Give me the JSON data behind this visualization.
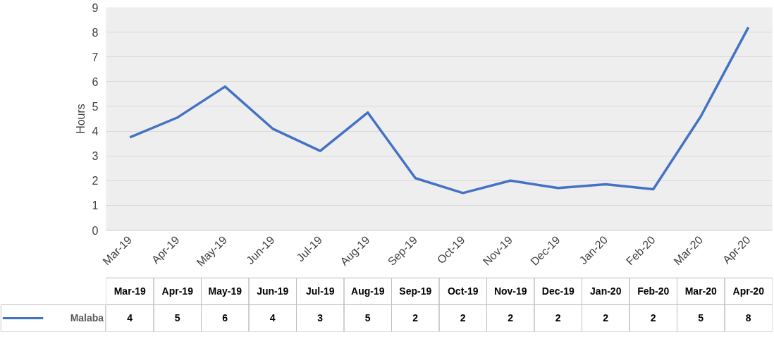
{
  "chart_data": {
    "type": "line",
    "ylabel": "Hours",
    "categories": [
      "Mar-19",
      "Apr-19",
      "May-19",
      "Jun-19",
      "Jul-19",
      "Aug-19",
      "Sep-19",
      "Oct-19",
      "Nov-19",
      "Dec-19",
      "Jan-20",
      "Feb-20",
      "Mar-20",
      "Apr-20"
    ],
    "series": [
      {
        "name": "Malaba",
        "color": "#4472c4",
        "values": [
          3.75,
          4.55,
          5.8,
          4.1,
          3.2,
          4.75,
          2.1,
          1.5,
          2.0,
          1.7,
          1.85,
          1.65,
          4.6,
          8.2
        ],
        "value_labels": [
          "4",
          "5",
          "6",
          "4",
          "3",
          "5",
          "2",
          "2",
          "2",
          "2",
          "2",
          "2",
          "5",
          "8"
        ]
      }
    ],
    "ylim": [
      0,
      9
    ],
    "yticks": [
      0,
      1,
      2,
      3,
      4,
      5,
      6,
      7,
      8,
      9
    ],
    "grid": "y",
    "legend": "bottom",
    "marker": "none",
    "line_style": "solid"
  }
}
